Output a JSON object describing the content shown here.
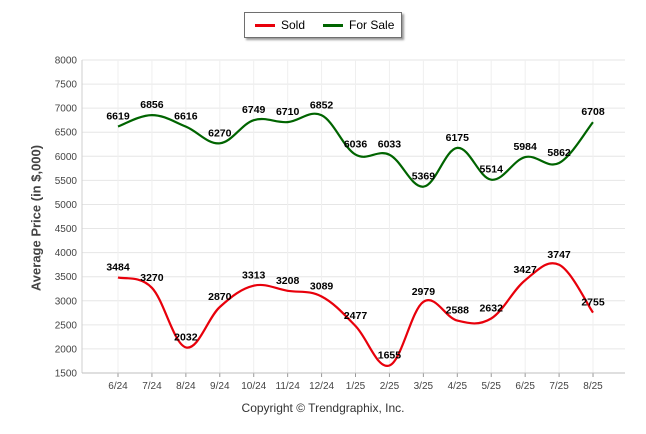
{
  "legend": {
    "sold_label": "Sold",
    "forsale_label": "For Sale"
  },
  "copyright": "Copyright © Trendgraphix, Inc.",
  "chart_data": {
    "type": "line",
    "title": "",
    "xlabel": "",
    "ylabel": "Average Price (in $,000)",
    "ylim": [
      1500,
      8000
    ],
    "yticks": [
      1500,
      2000,
      2500,
      3000,
      3500,
      4000,
      4500,
      5000,
      5500,
      6000,
      6500,
      7000,
      7500,
      8000
    ],
    "grid": true,
    "legend_position": "top-center",
    "categories": [
      "6/24",
      "7/24",
      "8/24",
      "9/24",
      "10/24",
      "11/24",
      "12/24",
      "1/25",
      "2/25",
      "3/25",
      "4/25",
      "5/25",
      "6/25",
      "7/25",
      "8/25"
    ],
    "series": [
      {
        "name": "Sold",
        "color": "#e8000b",
        "values": [
          3484,
          3270,
          2032,
          2870,
          3313,
          3208,
          3089,
          2477,
          1655,
          2979,
          2588,
          2632,
          3427,
          3747,
          2755
        ]
      },
      {
        "name": "For Sale",
        "color": "#006400",
        "values": [
          6619,
          6856,
          6616,
          6270,
          6749,
          6710,
          6852,
          6036,
          6033,
          5369,
          6175,
          5514,
          5984,
          5862,
          6708
        ]
      }
    ]
  }
}
